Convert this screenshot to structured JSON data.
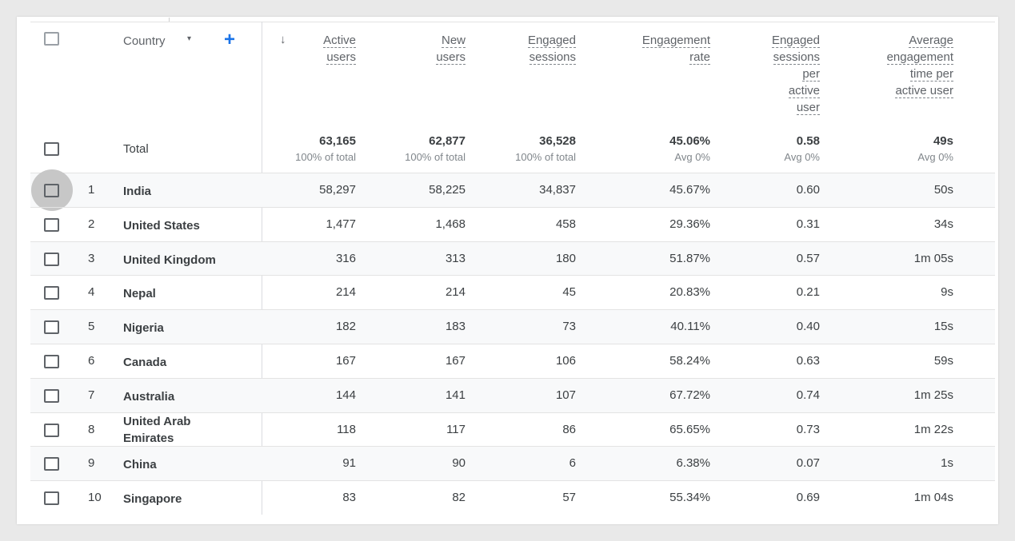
{
  "header": {
    "country_label": "Country",
    "caret_icon": "▾",
    "add_icon": "+",
    "sort_icon": "↓",
    "columns": [
      {
        "lines": [
          "Active",
          "users"
        ]
      },
      {
        "lines": [
          "New",
          "users"
        ]
      },
      {
        "lines": [
          "Engaged",
          "sessions"
        ]
      },
      {
        "lines": [
          "Engagement",
          "rate"
        ]
      },
      {
        "lines": [
          "Engaged",
          "sessions",
          "per",
          "active",
          "user"
        ]
      },
      {
        "lines": [
          "Average",
          "engagement",
          "time per",
          "active user"
        ]
      }
    ]
  },
  "totals": {
    "label": "Total",
    "values": [
      "63,165",
      "62,877",
      "36,528",
      "45.06%",
      "0.58",
      "49s"
    ],
    "subs": [
      "100% of total",
      "100% of total",
      "100% of total",
      "Avg 0%",
      "Avg 0%",
      "Avg 0%"
    ]
  },
  "rows": [
    {
      "rank": "1",
      "country": "India",
      "values": [
        "58,297",
        "58,225",
        "34,837",
        "45.67%",
        "0.60",
        "50s"
      ]
    },
    {
      "rank": "2",
      "country": "United States",
      "values": [
        "1,477",
        "1,468",
        "458",
        "29.36%",
        "0.31",
        "34s"
      ]
    },
    {
      "rank": "3",
      "country": "United Kingdom",
      "values": [
        "316",
        "313",
        "180",
        "51.87%",
        "0.57",
        "1m 05s"
      ]
    },
    {
      "rank": "4",
      "country": "Nepal",
      "values": [
        "214",
        "214",
        "45",
        "20.83%",
        "0.21",
        "9s"
      ]
    },
    {
      "rank": "5",
      "country": "Nigeria",
      "values": [
        "182",
        "183",
        "73",
        "40.11%",
        "0.40",
        "15s"
      ]
    },
    {
      "rank": "6",
      "country": "Canada",
      "values": [
        "167",
        "167",
        "106",
        "58.24%",
        "0.63",
        "59s"
      ]
    },
    {
      "rank": "7",
      "country": "Australia",
      "values": [
        "144",
        "141",
        "107",
        "67.72%",
        "0.74",
        "1m 25s"
      ]
    },
    {
      "rank": "8",
      "country": "United Arab Emirates",
      "values": [
        "118",
        "117",
        "86",
        "65.65%",
        "0.73",
        "1m 22s"
      ]
    },
    {
      "rank": "9",
      "country": "China",
      "values": [
        "91",
        "90",
        "6",
        "6.38%",
        "0.07",
        "1s"
      ]
    },
    {
      "rank": "10",
      "country": "Singapore",
      "values": [
        "83",
        "82",
        "57",
        "55.34%",
        "0.69",
        "1m 04s"
      ]
    }
  ],
  "colors": {
    "accent": "#1a73e8",
    "row_alt": "#f8f9fa",
    "text": "#3c4043",
    "muted": "#5f6368"
  }
}
